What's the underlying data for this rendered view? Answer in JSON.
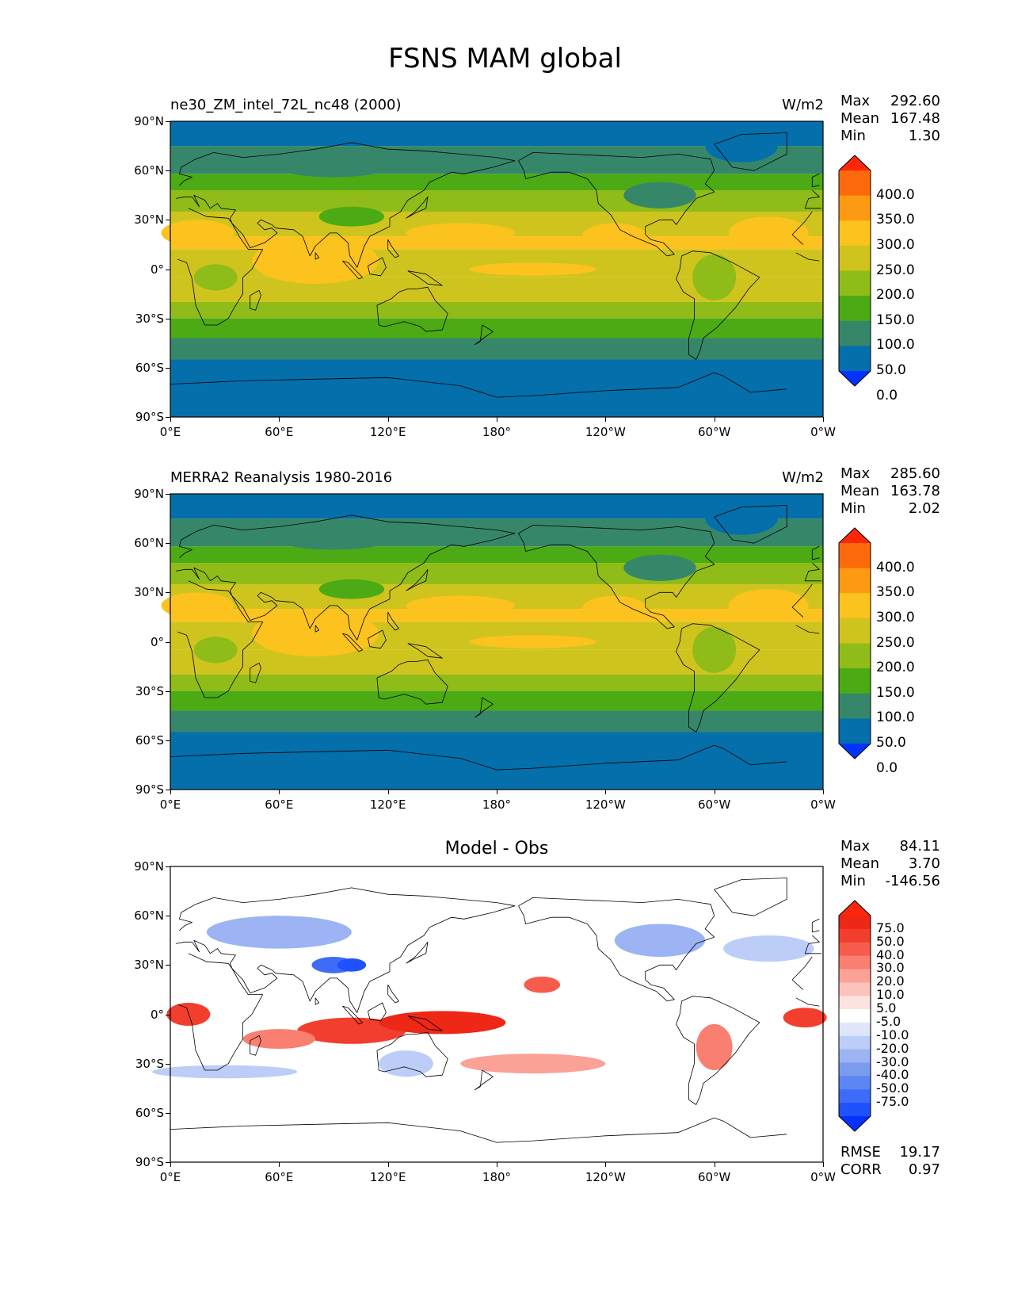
{
  "figure_title": "FSNS MAM global",
  "panels": [
    {
      "id": "test",
      "left_label": "ne30_ZM_intel_72L_nc48 (2000)",
      "right_label": "W/m2",
      "center_label": "",
      "stats": {
        "max_label": "Max",
        "max": "292.60",
        "mean_label": "Mean",
        "mean": "167.48",
        "min_label": "Min",
        "min": "1.30"
      },
      "colorbar_labels": [
        "400.0",
        "350.0",
        "300.0",
        "250.0",
        "200.0",
        "150.0",
        "100.0",
        "50.0",
        "0.0"
      ]
    },
    {
      "id": "reference",
      "left_label": "MERRA2 Reanalysis 1980-2016",
      "right_label": "W/m2",
      "center_label": "",
      "stats": {
        "max_label": "Max",
        "max": "285.60",
        "mean_label": "Mean",
        "mean": "163.78",
        "min_label": "Min",
        "min": "2.02"
      },
      "colorbar_labels": [
        "400.0",
        "350.0",
        "300.0",
        "250.0",
        "200.0",
        "150.0",
        "100.0",
        "50.0",
        "0.0"
      ]
    },
    {
      "id": "diff",
      "left_label": "",
      "right_label": "",
      "center_label": "Model - Obs",
      "stats": {
        "max_label": "Max",
        "max": "84.11",
        "mean_label": "Mean",
        "mean": "3.70",
        "min_label": "Min",
        "min": "-146.56"
      },
      "colorbar_labels": [
        "75.0",
        "50.0",
        "40.0",
        "30.0",
        "20.0",
        "10.0",
        "5.0",
        "-5.0",
        "-10.0",
        "-20.0",
        "-30.0",
        "-40.0",
        "-50.0",
        "-75.0"
      ],
      "rmse_label": "RMSE",
      "rmse": "19.17",
      "corr_label": "CORR",
      "corr": "0.97"
    }
  ],
  "axes": {
    "y_ticks": [
      "90°N",
      "60°N",
      "30°N",
      "0°",
      "30°S",
      "60°S",
      "90°S"
    ],
    "x_ticks": [
      "0°E",
      "60°E",
      "120°E",
      "180°",
      "120°W",
      "60°W",
      "0°W"
    ]
  },
  "colors": {
    "field_scale": [
      "#0433ff",
      "#046faa",
      "#36876a",
      "#4caa14",
      "#8fbc18",
      "#cfc41e",
      "#fcc21e",
      "#fc9b13",
      "#fc6a0c",
      "#fe2709"
    ],
    "diff_scale": [
      "#0433ff",
      "#1f52fc",
      "#3e6cf9",
      "#5b86f3",
      "#7a9cf0",
      "#9cb4f3",
      "#bccdf8",
      "#dfe6fc",
      "#ffffff",
      "#fde3e0",
      "#fcc2bb",
      "#fba196",
      "#f97f71",
      "#f65c4c",
      "#f23e2c",
      "#ee2716",
      "#fe2709"
    ],
    "coastline": "#000000"
  }
}
